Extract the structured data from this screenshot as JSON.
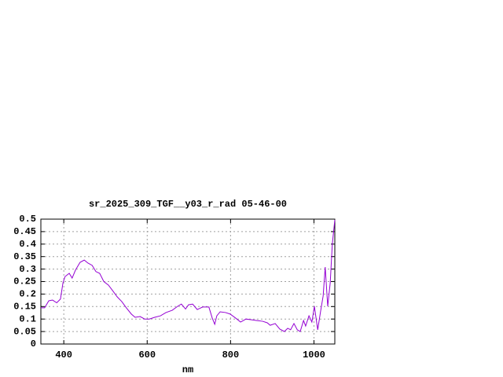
{
  "chart_data": {
    "type": "line",
    "title": "sr_2025_309_TGF__y03_r_rad 05-46-00",
    "x_label": "nm",
    "x": [
      345,
      354,
      364,
      373,
      383,
      392,
      398,
      403,
      413,
      420,
      428,
      439,
      449,
      458,
      468,
      477,
      486,
      496,
      507,
      517,
      528,
      539,
      550,
      562,
      571,
      583,
      594,
      605,
      618,
      632,
      645,
      660,
      673,
      682,
      692,
      699,
      709,
      720,
      733,
      748,
      756,
      762,
      767,
      775,
      788,
      799,
      812,
      824,
      837,
      850,
      863,
      877,
      888,
      895,
      907,
      918,
      929,
      937,
      944,
      952,
      960,
      967,
      975,
      980,
      988,
      995,
      1001,
      1009,
      1016,
      1022,
      1027,
      1033,
      1039,
      1044,
      1050
    ],
    "series": [
      {
        "color": "#9400d3",
        "values": [
          0.145,
          0.145,
          0.173,
          0.176,
          0.165,
          0.18,
          0.245,
          0.27,
          0.283,
          0.264,
          0.296,
          0.327,
          0.336,
          0.324,
          0.315,
          0.29,
          0.283,
          0.25,
          0.236,
          0.214,
          0.189,
          0.17,
          0.145,
          0.12,
          0.107,
          0.11,
          0.1,
          0.1,
          0.107,
          0.113,
          0.126,
          0.135,
          0.151,
          0.16,
          0.14,
          0.157,
          0.16,
          0.138,
          0.148,
          0.148,
          0.104,
          0.079,
          0.113,
          0.129,
          0.126,
          0.12,
          0.104,
          0.088,
          0.1,
          0.097,
          0.094,
          0.091,
          0.085,
          0.075,
          0.082,
          0.06,
          0.05,
          0.063,
          0.057,
          0.082,
          0.057,
          0.05,
          0.094,
          0.072,
          0.113,
          0.088,
          0.151,
          0.057,
          0.132,
          0.192,
          0.308,
          0.151,
          0.245,
          0.4,
          0.497
        ]
      }
    ],
    "xlim": [
      345,
      1050
    ],
    "xticks": [
      400,
      600,
      800,
      1000
    ],
    "ylim": [
      0,
      0.5
    ],
    "yticks": [
      0,
      0.05,
      0.1,
      0.15,
      0.2,
      0.25,
      0.3,
      0.35,
      0.4,
      0.45,
      0.5
    ],
    "grid": true
  }
}
